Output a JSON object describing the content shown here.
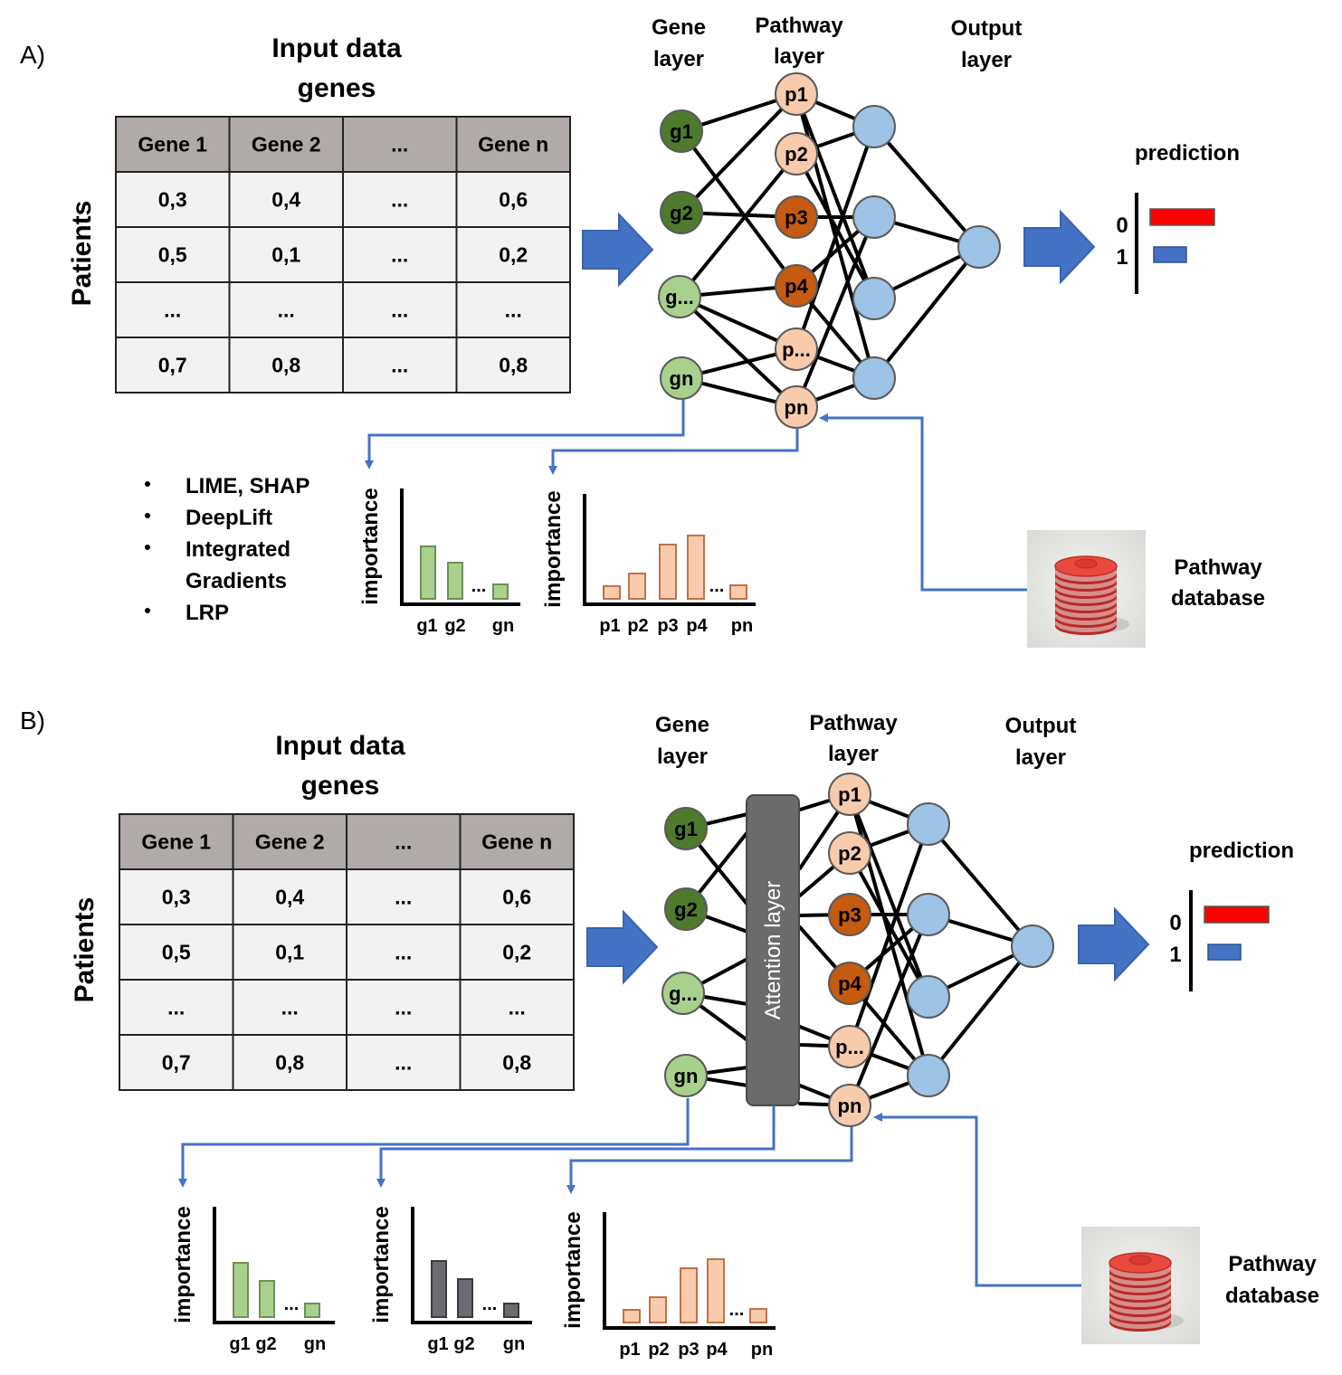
{
  "colors": {
    "gene_dark": "#4e7a2e",
    "gene_light": "#a9d18e",
    "path_light": "#f8cbad",
    "path_dark": "#c55a11",
    "output": "#9dc3e6",
    "arrow": "#4472c4",
    "table_header": "#b0aaa8",
    "table_body": "#f2f2f2",
    "pred_0": "#ff0000",
    "pred_1": "#4472c4",
    "attention": "#6b6b6b",
    "bar_gray": "#6b6b72"
  },
  "panel_a": {
    "panel_label": "A)",
    "input_title_1": "Input data",
    "input_title_2": "genes",
    "patients_label": "Patients",
    "gene_layer_1": "Gene",
    "gene_layer_2": "layer",
    "pathway_layer_1": "Pathway",
    "pathway_layer_2": "layer",
    "output_layer_1": "Output",
    "output_layer_2": "layer",
    "prediction_label": "prediction",
    "pred_class_0": "0",
    "pred_class_1": "1",
    "table_headers": [
      "Gene 1",
      "Gene 2",
      "...",
      "Gene n"
    ],
    "table_rows": [
      [
        "0,3",
        "0,4",
        "...",
        "0,6"
      ],
      [
        "0,5",
        "0,1",
        "...",
        "0,2"
      ],
      [
        "...",
        "...",
        "...",
        "..."
      ],
      [
        "0,7",
        "0,8",
        "...",
        "0,8"
      ]
    ],
    "genes": [
      "g1",
      "g2",
      "g...",
      "gn"
    ],
    "pathways": [
      "p1",
      "p2",
      "p3",
      "p4",
      "p...",
      "pn"
    ],
    "methods": [
      "LIME, SHAP",
      "DeepLift",
      "Integrated",
      "Gradients",
      "LRP"
    ],
    "importance_label": "importance",
    "gene_chart_ticks": [
      "g1",
      "g2",
      "gn"
    ],
    "pathway_chart_ticks": [
      "p1",
      "p2",
      "p3",
      "p4",
      "pn"
    ],
    "db_label_1": "Pathway",
    "db_label_2": "database"
  },
  "panel_b": {
    "panel_label": "B)",
    "input_title_1": "Input data",
    "input_title_2": "genes",
    "patients_label": "Patients",
    "gene_layer_1": "Gene",
    "gene_layer_2": "layer",
    "pathway_layer_1": "Pathway",
    "pathway_layer_2": "layer",
    "output_layer_1": "Output",
    "output_layer_2": "layer",
    "prediction_label": "prediction",
    "pred_class_0": "0",
    "pred_class_1": "1",
    "table_headers": [
      "Gene 1",
      "Gene 2",
      "...",
      "Gene n"
    ],
    "table_rows": [
      [
        "0,3",
        "0,4",
        "...",
        "0,6"
      ],
      [
        "0,5",
        "0,1",
        "...",
        "0,2"
      ],
      [
        "...",
        "...",
        "...",
        "..."
      ],
      [
        "0,7",
        "0,8",
        "...",
        "0,8"
      ]
    ],
    "genes": [
      "g1",
      "g2",
      "g...",
      "gn"
    ],
    "pathways": [
      "p1",
      "p2",
      "p3",
      "p4",
      "p...",
      "pn"
    ],
    "attention_label": "Attention layer",
    "importance_label": "importance",
    "gene_chart_ticks": [
      "g1",
      "g2",
      "gn"
    ],
    "attention_chart_ticks": [
      "g1",
      "g2",
      "gn"
    ],
    "pathway_chart_ticks": [
      "p1",
      "p2",
      "p3",
      "p4",
      "pn"
    ],
    "db_label_1": "Pathway",
    "db_label_2": "database"
  }
}
